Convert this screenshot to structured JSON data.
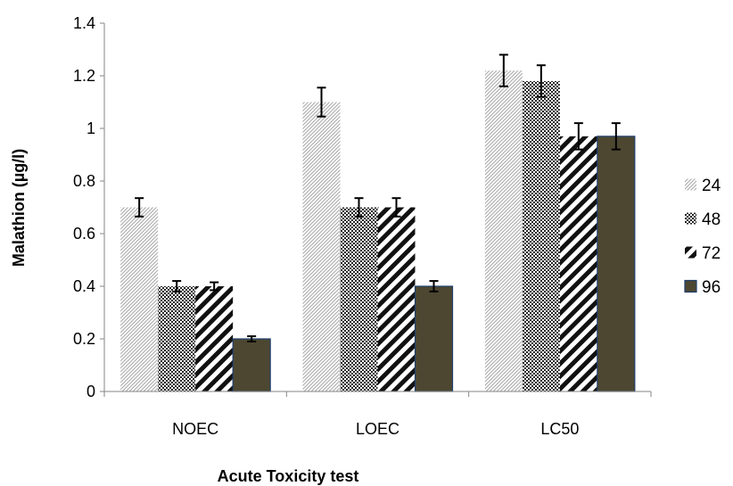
{
  "chart_data": {
    "type": "bar",
    "xlabel": "Acute Toxicity test",
    "ylabel": "Malathion  (µg/l)",
    "categories": [
      "NOEC",
      "LOEC",
      "LC50"
    ],
    "ylim": [
      0,
      1.4
    ],
    "yticks": [
      "0",
      "0.2",
      "0.4",
      "0.6",
      "0.8",
      "1",
      "1.2",
      "1.4"
    ],
    "grid": false,
    "legend_position": "right",
    "series": [
      {
        "name": "24",
        "pattern": "light-diagonal",
        "values": [
          0.7,
          1.1,
          1.22
        ],
        "errors": [
          0.035,
          0.055,
          0.06
        ]
      },
      {
        "name": "48",
        "pattern": "checkerboard",
        "values": [
          0.4,
          0.7,
          1.18
        ],
        "errors": [
          0.02,
          0.035,
          0.06
        ]
      },
      {
        "name": "72",
        "pattern": "wide-diagonal",
        "values": [
          0.4,
          0.7,
          0.97
        ],
        "errors": [
          0.015,
          0.035,
          0.05
        ]
      },
      {
        "name": "96",
        "pattern": "solid",
        "values": [
          0.2,
          0.4,
          0.97
        ],
        "errors": [
          0.01,
          0.02,
          0.05
        ]
      }
    ],
    "colors": {
      "solid_fill": "#4d4731",
      "solid_border": "#1f3f6e",
      "axis": "#868686"
    }
  }
}
